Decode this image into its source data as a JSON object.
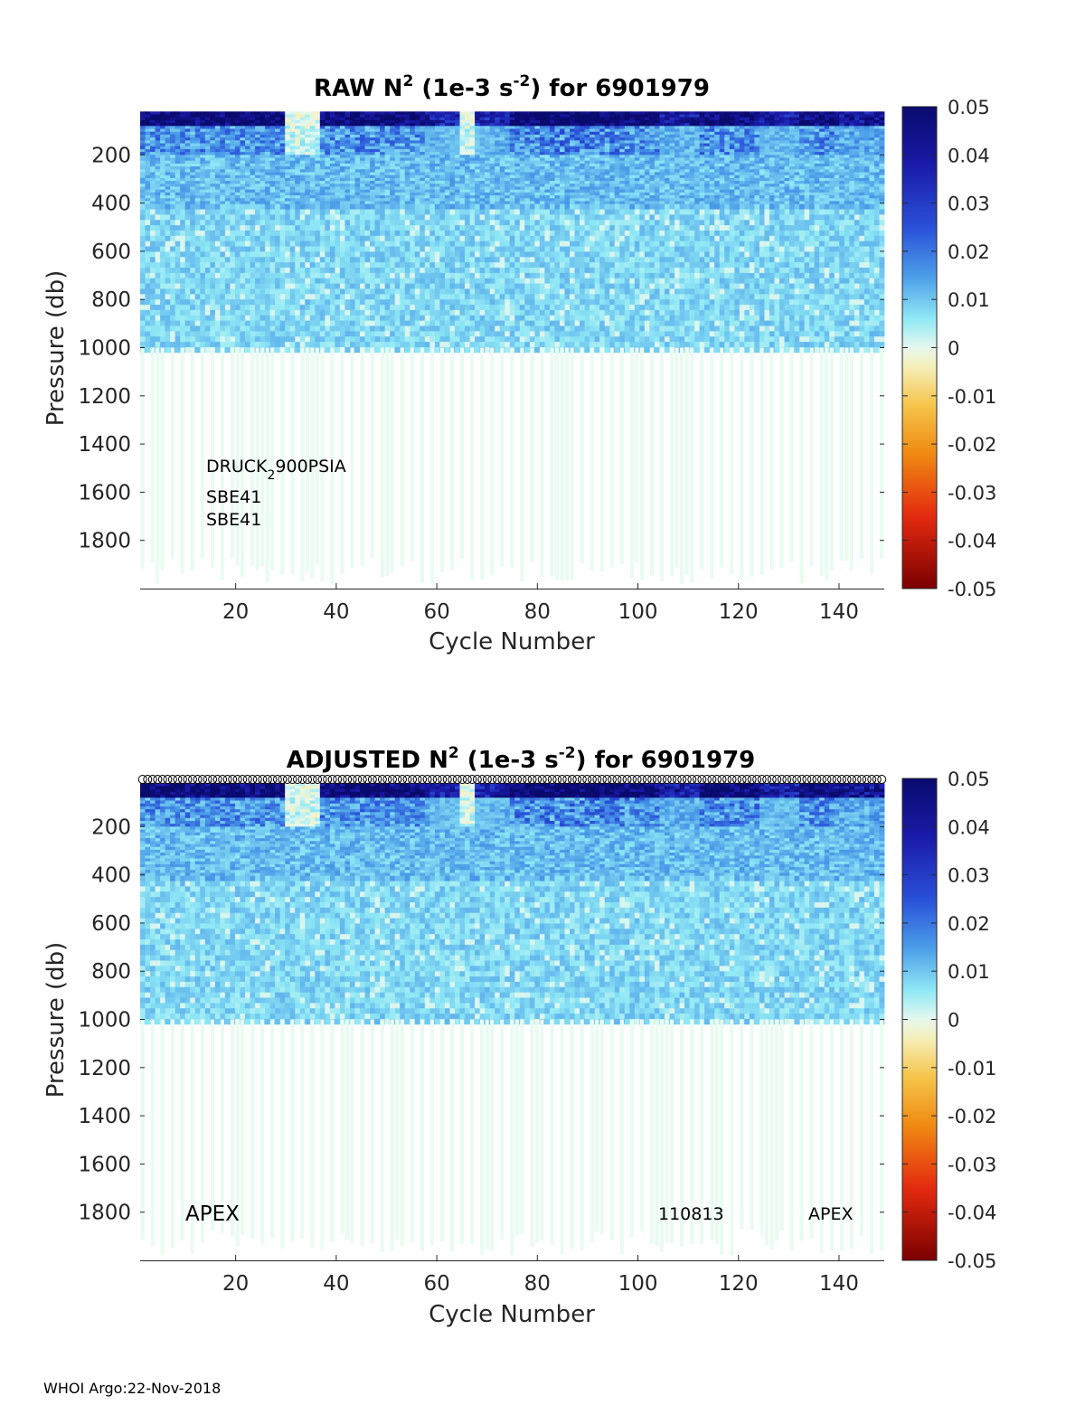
{
  "footer": "WHOI Argo:22-Nov-2018",
  "chart_data": [
    {
      "type": "heatmap",
      "title": {
        "pre": "RAW N",
        "sup1": "2",
        "mid": " (1e-3 s",
        "sup2": "-2",
        "post": ") for 6901979"
      },
      "xlabel": "Cycle Number",
      "ylabel": "Pressure (db)",
      "xlim": [
        1,
        149
      ],
      "ylim": [
        0,
        2000
      ],
      "y_reversed": true,
      "xticks": [
        20,
        40,
        60,
        80,
        100,
        120,
        140
      ],
      "yticks": [
        200,
        400,
        600,
        800,
        1000,
        1200,
        1400,
        1600,
        1800
      ],
      "colorbar": {
        "clim": [
          -0.05,
          0.05
        ],
        "ticks": [
          "0.05",
          "0.04",
          "0.03",
          "0.02",
          "0.01",
          "0",
          "-0.01",
          "-0.02",
          "-0.03",
          "-0.04",
          "-0.05"
        ],
        "colormap": "jet-reversed"
      },
      "profile_max_depth_db": 1000,
      "annotations": {
        "a1_main": "DRUCK",
        "a1_sub": "2",
        "a1_tail": "900PSIA",
        "a2": "SBE41",
        "a3": "SBE41"
      }
    },
    {
      "type": "heatmap",
      "title": {
        "pre": "ADJUSTED N",
        "sup1": "2",
        "mid": " (1e-3 s",
        "sup2": "-2",
        "post": ") for 6901979"
      },
      "xlabel": "Cycle Number",
      "ylabel": "Pressure (db)",
      "xlim": [
        1,
        149
      ],
      "ylim": [
        0,
        2000
      ],
      "y_reversed": true,
      "xticks": [
        20,
        40,
        60,
        80,
        100,
        120,
        140
      ],
      "yticks": [
        200,
        400,
        600,
        800,
        1000,
        1200,
        1400,
        1600,
        1800
      ],
      "colorbar": {
        "clim": [
          -0.05,
          0.05
        ],
        "ticks": [
          "0.05",
          "0.04",
          "0.03",
          "0.02",
          "0.01",
          "0",
          "-0.01",
          "-0.02",
          "-0.03",
          "-0.04",
          "-0.05"
        ],
        "colormap": "jet-reversed"
      },
      "profile_max_depth_db": 1000,
      "qc_markers": "circles along top for every cycle",
      "annotations": {
        "left": "APEX",
        "mid": "110813",
        "right": "APEX"
      }
    }
  ]
}
